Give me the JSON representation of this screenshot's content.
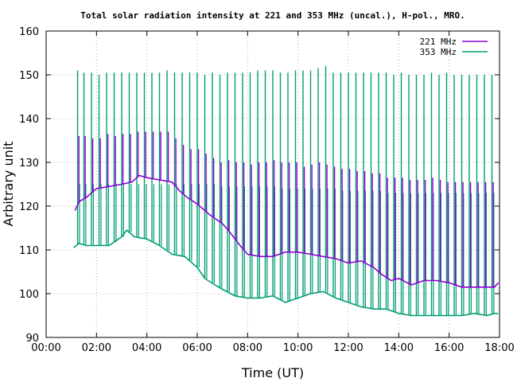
{
  "chart_data": {
    "type": "line",
    "title": "Total solar radiation intensity at 221 and 353 MHz (uncal.), H-pol., MRO.",
    "xlabel": "Time (UT)",
    "ylabel": "Arbitrary unit",
    "xlim": [
      0,
      18
    ],
    "ylim": [
      90,
      160
    ],
    "x_ticks": [
      "00:00",
      "02:00",
      "04:00",
      "06:00",
      "08:00",
      "10:00",
      "12:00",
      "14:00",
      "16:00",
      "18:00"
    ],
    "y_ticks": [
      "90",
      "100",
      "110",
      "120",
      "130",
      "140",
      "150",
      "160"
    ],
    "grid": true,
    "legend_position": "top-right",
    "series": [
      {
        "name": "221 MHz",
        "color": "#8f00d4",
        "x": [
          1.15,
          1.3,
          1.6,
          2.0,
          2.5,
          3.0,
          3.4,
          3.7,
          4.0,
          4.5,
          5.0,
          5.3,
          5.6,
          6.0,
          6.5,
          7.0,
          7.3,
          7.7,
          8.0,
          8.5,
          9.0,
          9.5,
          10.0,
          10.5,
          11.0,
          11.5,
          12.0,
          12.5,
          13.0,
          13.3,
          13.7,
          14.0,
          14.5,
          15.0,
          15.5,
          16.0,
          16.5,
          17.0,
          17.5,
          17.8,
          17.95
        ],
        "y": [
          119,
          121,
          122,
          124,
          124.5,
          125,
          125.5,
          127,
          126.5,
          126,
          125.5,
          123.5,
          122,
          120.5,
          118,
          116,
          114,
          111,
          109,
          108.5,
          108.5,
          109.5,
          109.5,
          109,
          108.5,
          108,
          107,
          107.5,
          106,
          104.5,
          103,
          103.5,
          102,
          103,
          103,
          102.5,
          101.5,
          101.5,
          101.5,
          101.5,
          102.5
        ],
        "spikes": {
          "x": [
            1.3,
            1.55,
            1.85,
            2.15,
            2.45,
            2.75,
            3.05,
            3.35,
            3.65,
            3.95,
            4.25,
            4.55,
            4.85,
            5.15,
            5.45,
            5.75,
            6.05,
            6.35,
            6.65,
            6.95,
            7.25,
            7.55,
            7.85,
            8.15,
            8.45,
            8.75,
            9.05,
            9.35,
            9.65,
            9.95,
            10.25,
            10.55,
            10.85,
            11.15,
            11.45,
            11.75,
            12.05,
            12.35,
            12.65,
            12.95,
            13.25,
            13.55,
            13.85,
            14.15,
            14.45,
            14.75,
            15.05,
            15.35,
            15.65,
            15.95,
            16.25,
            16.55,
            16.85,
            17.15,
            17.45,
            17.75
          ],
          "peak": [
            136,
            136,
            135.5,
            135.5,
            136.5,
            136,
            136.5,
            136.5,
            137,
            137,
            137,
            137,
            137,
            135.5,
            134,
            133,
            133,
            132,
            131,
            130,
            130.5,
            130,
            130,
            129.5,
            130,
            130,
            130.5,
            130,
            130,
            130,
            129,
            129.5,
            130,
            129.5,
            129,
            128.5,
            128.5,
            128,
            128,
            127.5,
            127.5,
            126.5,
            126.5,
            126.5,
            126,
            126,
            126,
            126.5,
            126,
            125.5,
            125.5,
            125.5,
            125.5,
            125.5,
            125.5,
            125.5
          ]
        }
      },
      {
        "name": "353 MHz",
        "color": "#009e73",
        "x": [
          1.1,
          1.3,
          1.6,
          2.0,
          2.5,
          3.0,
          3.2,
          3.5,
          4.0,
          4.5,
          5.0,
          5.5,
          5.7,
          6.0,
          6.3,
          6.7,
          7.0,
          7.5,
          8.0,
          8.5,
          9.0,
          9.5,
          10.0,
          10.5,
          11.0,
          11.5,
          12.0,
          12.5,
          13.0,
          13.5,
          14.0,
          14.5,
          15.0,
          15.5,
          16.0,
          16.5,
          17.0,
          17.5,
          17.8,
          17.95
        ],
        "y": [
          110.5,
          111.5,
          111,
          111,
          111,
          113,
          114.5,
          113,
          112.5,
          111,
          109,
          108.5,
          107.5,
          106,
          103.5,
          102,
          101,
          99.5,
          99,
          99,
          99.5,
          98,
          99,
          100,
          100.5,
          99,
          98,
          97,
          96.5,
          96.5,
          95.5,
          95,
          95,
          95,
          95,
          95,
          95.5,
          95,
          95.5,
          95.5
        ],
        "spikes": {
          "x": [
            1.25,
            1.5,
            1.8,
            2.1,
            2.4,
            2.7,
            3.0,
            3.3,
            3.6,
            3.9,
            4.2,
            4.5,
            4.8,
            5.1,
            5.4,
            5.7,
            6.0,
            6.3,
            6.6,
            6.9,
            7.2,
            7.5,
            7.8,
            8.1,
            8.4,
            8.7,
            9.0,
            9.3,
            9.6,
            9.9,
            10.2,
            10.5,
            10.8,
            11.1,
            11.4,
            11.7,
            12.0,
            12.3,
            12.6,
            12.9,
            13.2,
            13.5,
            13.8,
            14.1,
            14.4,
            14.7,
            15.0,
            15.3,
            15.6,
            15.9,
            16.2,
            16.5,
            16.8,
            17.1,
            17.4,
            17.7
          ],
          "peak": [
            151,
            150.5,
            150.5,
            150,
            150.5,
            150.5,
            150.5,
            150.5,
            150.5,
            150.5,
            150.5,
            150.5,
            151,
            150.5,
            150.5,
            150.5,
            150.5,
            150,
            150.5,
            150,
            150.5,
            150.5,
            150.5,
            150.5,
            151,
            151,
            151,
            150.5,
            150.5,
            151,
            151,
            151,
            151.5,
            152,
            150.5,
            150.5,
            150.5,
            150.5,
            150.5,
            150.5,
            150.5,
            150.5,
            150,
            150.5,
            150,
            150,
            150,
            150.5,
            150,
            150.5,
            150,
            150,
            150,
            150,
            150,
            150
          ],
          "shelf": [
            125,
            125,
            125,
            125,
            125,
            125,
            125,
            125,
            125,
            125,
            125,
            125,
            125,
            125,
            125,
            125,
            125,
            125,
            125,
            124.5,
            124.5,
            124.5,
            124.5,
            124.5,
            124.5,
            124.5,
            124.5,
            124,
            124,
            124,
            124,
            124,
            124,
            124,
            124,
            123.5,
            123.5,
            123.5,
            123.5,
            123.5,
            123.5,
            123,
            123,
            123,
            123,
            123,
            123,
            123,
            123,
            123,
            123,
            123,
            123,
            123,
            123,
            123
          ]
        }
      }
    ]
  }
}
